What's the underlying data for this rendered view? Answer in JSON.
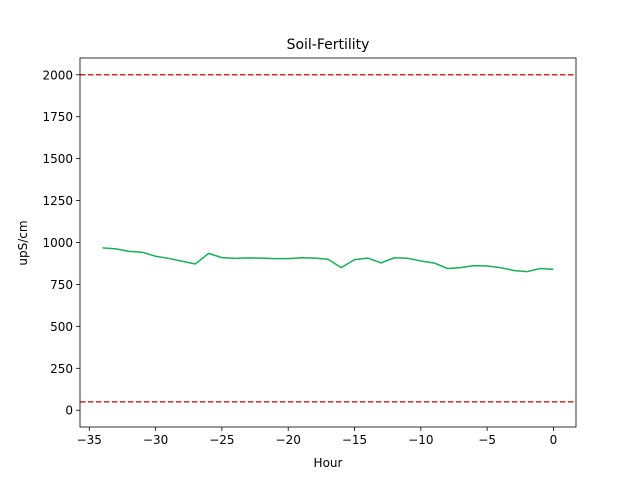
{
  "chart_data": {
    "type": "line",
    "title": "Soil-Fertility",
    "xlabel": "Hour",
    "ylabel": "upS/cm",
    "xlim": [
      -35.7,
      1.7
    ],
    "ylim": [
      -100,
      2100
    ],
    "xticks": [
      -35,
      -30,
      -25,
      -20,
      -15,
      -10,
      -5,
      0
    ],
    "yticks": [
      0,
      250,
      500,
      750,
      1000,
      1250,
      1500,
      1750,
      2000
    ],
    "grid": false,
    "series": [
      {
        "color": "#1aaf54",
        "x": [
          -34,
          -33,
          -32,
          -31,
          -30,
          -29,
          -28,
          -27,
          -26,
          -25,
          -24,
          -23,
          -22,
          -21,
          -20,
          -19,
          -18,
          -17,
          -16,
          -15,
          -14,
          -13,
          -12,
          -11,
          -10,
          -9,
          -8,
          -7,
          -6,
          -5,
          -4,
          -3,
          -2,
          -1,
          0
        ],
        "y": [
          968,
          962,
          947,
          942,
          918,
          905,
          888,
          872,
          935,
          910,
          905,
          908,
          907,
          904,
          904,
          909,
          907,
          900,
          850,
          898,
          907,
          878,
          909,
          906,
          890,
          878,
          845,
          850,
          862,
          860,
          850,
          833,
          826,
          845,
          840
        ]
      }
    ],
    "reference_lines": [
      {
        "y": 2000,
        "color": "#d62728",
        "style": "dashed"
      },
      {
        "y": 50,
        "color": "#d62728",
        "style": "dashed"
      }
    ]
  }
}
